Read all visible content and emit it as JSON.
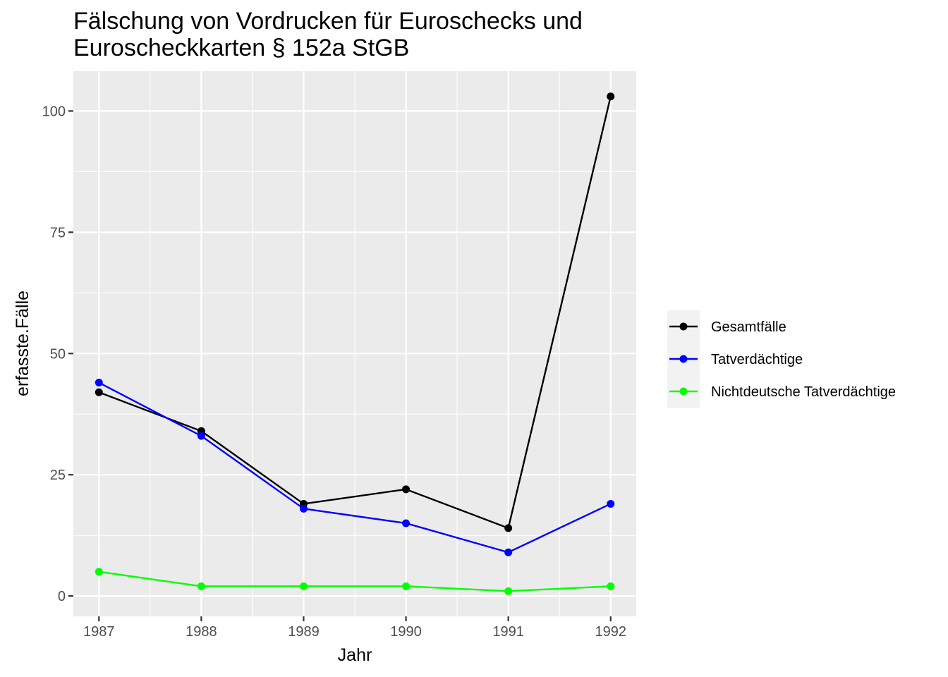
{
  "chart_data": {
    "type": "line",
    "title_lines": [
      "Fälschung von Vordrucken für Euroschecks und",
      "Euroscheckkarten § 152a StGB"
    ],
    "xlabel": "Jahr",
    "ylabel": "erfasste.Fälle",
    "x": [
      1987,
      1988,
      1989,
      1990,
      1991,
      1992
    ],
    "xlim": [
      1986.75,
      1992.25
    ],
    "ylim": [
      -4.2,
      108.2
    ],
    "yticks": [
      0,
      25,
      50,
      75,
      100
    ],
    "grid": true,
    "legend_position": "right",
    "series": [
      {
        "name": "Gesamtfälle",
        "color": "#000000",
        "values": [
          42,
          34,
          19,
          22,
          14,
          103
        ]
      },
      {
        "name": "Tatverdächtige",
        "color": "#0000ff",
        "values": [
          44,
          33,
          18,
          15,
          9,
          19
        ]
      },
      {
        "name": "Nichtdeutsche Tatverdächtige",
        "color": "#00ff00",
        "values": [
          5,
          2,
          2,
          2,
          1,
          2
        ]
      }
    ]
  }
}
